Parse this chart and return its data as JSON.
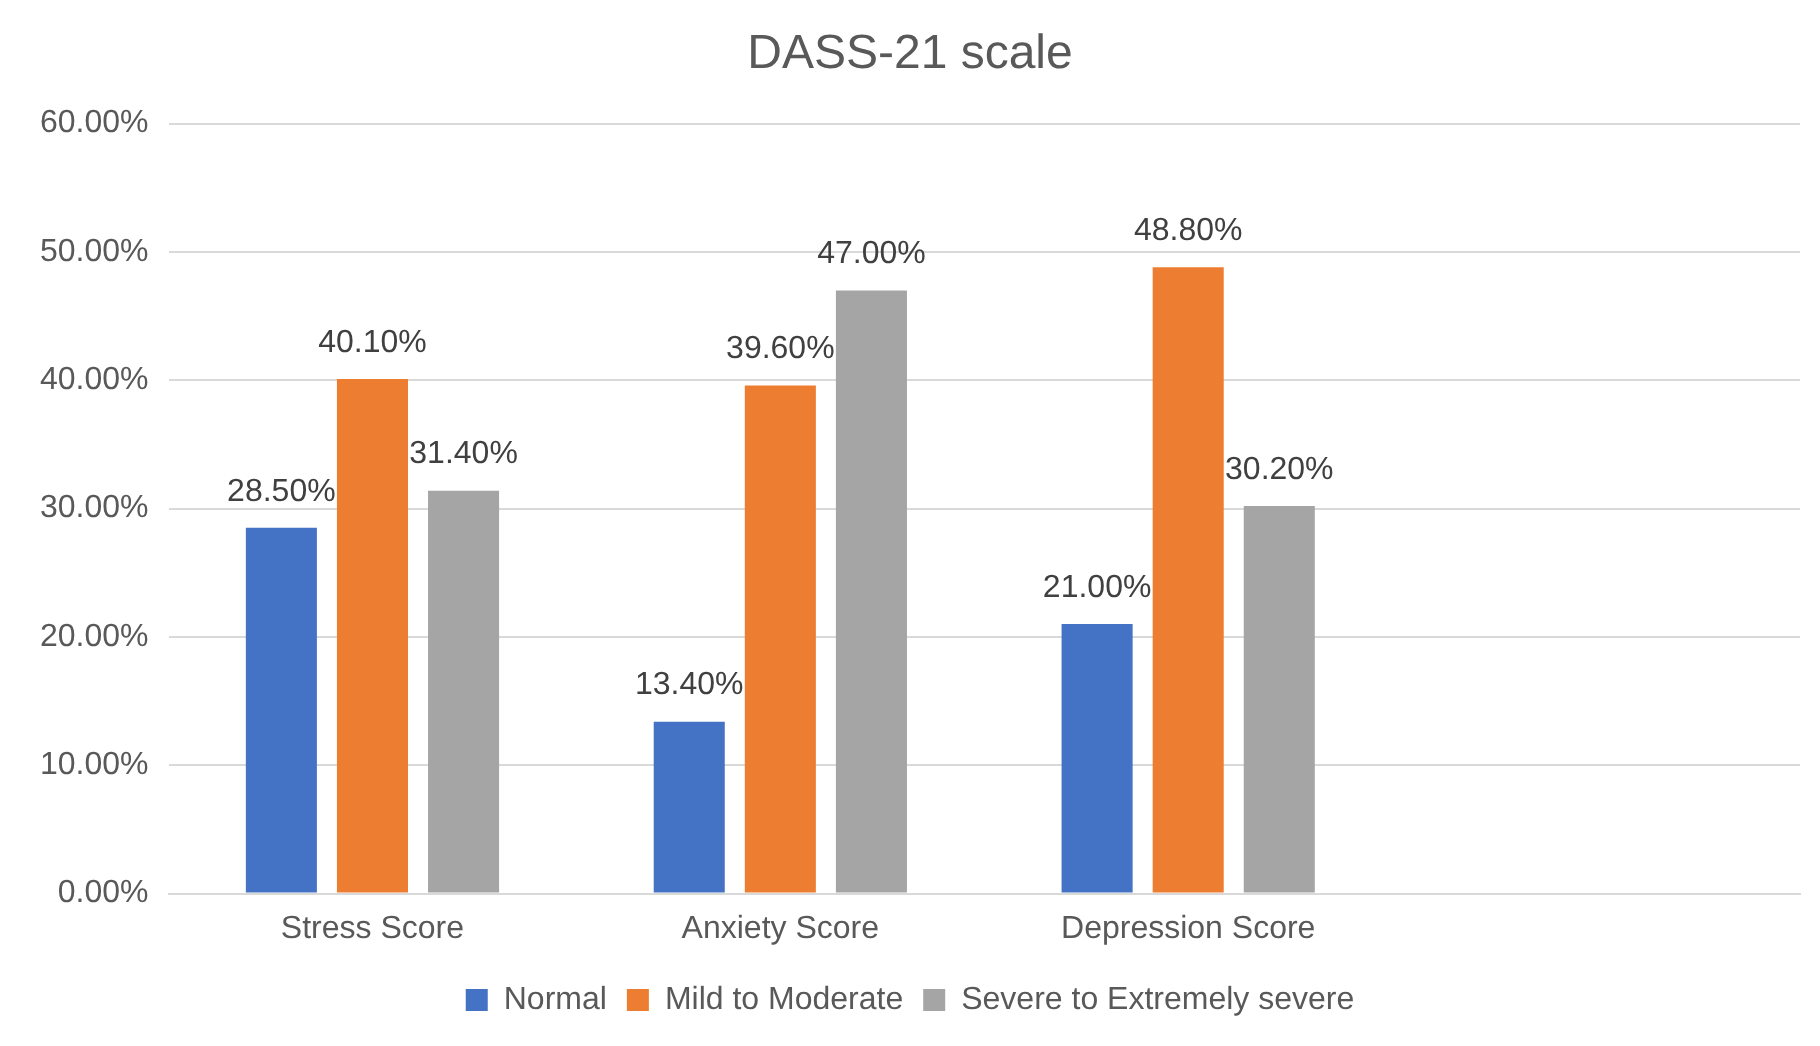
{
  "chart_data": {
    "type": "bar",
    "title": "DASS-21 scale",
    "categories": [
      "Stress Score",
      "Anxiety Score",
      "Depression Score",
      null
    ],
    "series": [
      {
        "name": "Normal",
        "color": "#4472c4",
        "values": [
          28.5,
          13.4,
          21.0,
          null
        ],
        "value_labels": [
          "28.50%",
          "13.40%",
          "21.00%",
          null
        ]
      },
      {
        "name": "Mild to Moderate",
        "color": "#ed7d31",
        "values": [
          40.1,
          39.6,
          48.8,
          null
        ],
        "value_labels": [
          "40.10%",
          "39.60%",
          "48.80%",
          null
        ]
      },
      {
        "name": "Severe to Extremely severe",
        "color": "#a5a5a5",
        "values": [
          31.4,
          47.0,
          30.2,
          null
        ],
        "value_labels": [
          "31.40%",
          "47.00%",
          "30.20%",
          null
        ]
      }
    ],
    "ylim": [
      0,
      60
    ],
    "yticks": [
      {
        "value": 0,
        "label": "0.00%"
      },
      {
        "value": 10,
        "label": "10.00%"
      },
      {
        "value": 20,
        "label": "20.00%"
      },
      {
        "value": 30,
        "label": "30.00%"
      },
      {
        "value": 40,
        "label": "40.00%"
      },
      {
        "value": 50,
        "label": "50.00%"
      },
      {
        "value": 60,
        "label": "60.00%"
      }
    ],
    "grid": "y",
    "legend": "bottom"
  }
}
